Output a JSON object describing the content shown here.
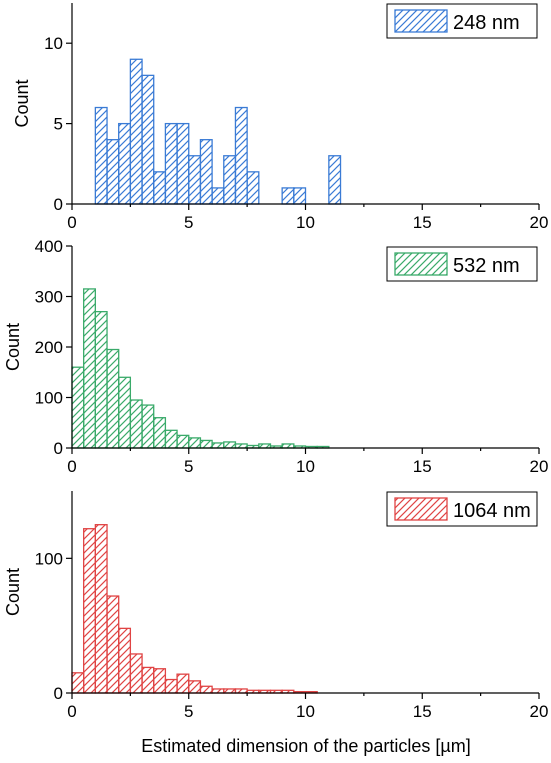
{
  "figure": {
    "xlabel": "Estimated dimension of the particles [µm]"
  },
  "chart_data": [
    {
      "type": "bar",
      "name": "248 nm",
      "legend": "248 nm",
      "color": "#3a7bd5",
      "ylabel": "Count",
      "xlim": [
        0,
        20
      ],
      "ylim": [
        0,
        12.5
      ],
      "xticks": [
        0,
        5,
        10,
        15,
        20
      ],
      "yticks": [
        0,
        5,
        10
      ],
      "bin_width": 0.5,
      "bin_start": 1.0,
      "values": [
        6,
        4,
        5,
        9,
        8,
        2,
        5,
        5,
        3,
        4,
        1,
        3,
        6,
        2,
        0,
        0,
        1,
        1,
        0,
        0,
        3
      ],
      "legend_position": "top-right",
      "grid": false
    },
    {
      "type": "bar",
      "name": "532 nm",
      "legend": "532 nm",
      "color": "#3aaa6a",
      "ylabel": "Count",
      "xlim": [
        0,
        20
      ],
      "ylim": [
        0,
        400
      ],
      "xticks": [
        0,
        5,
        10,
        15,
        20
      ],
      "yticks": [
        0,
        100,
        200,
        300,
        400
      ],
      "bin_width": 0.5,
      "bin_start": 0.0,
      "values": [
        160,
        315,
        270,
        195,
        140,
        95,
        85,
        60,
        35,
        25,
        20,
        15,
        10,
        12,
        8,
        5,
        8,
        4,
        8,
        4,
        3,
        3
      ],
      "legend_position": "top-right",
      "grid": false
    },
    {
      "type": "bar",
      "name": "1064 nm",
      "legend": "1064 nm",
      "color": "#e04444",
      "ylabel": "Count",
      "xlim": [
        0,
        20
      ],
      "ylim": [
        0,
        150
      ],
      "xticks": [
        0,
        5,
        10,
        15,
        20
      ],
      "yticks": [
        0,
        100
      ],
      "bin_width": 0.5,
      "bin_start": 0.0,
      "values": [
        15,
        122,
        125,
        72,
        48,
        29,
        19,
        18,
        10,
        14,
        9,
        5,
        3,
        3,
        3,
        2,
        2,
        2,
        2,
        1,
        1
      ],
      "legend_position": "top-right",
      "grid": false
    }
  ]
}
